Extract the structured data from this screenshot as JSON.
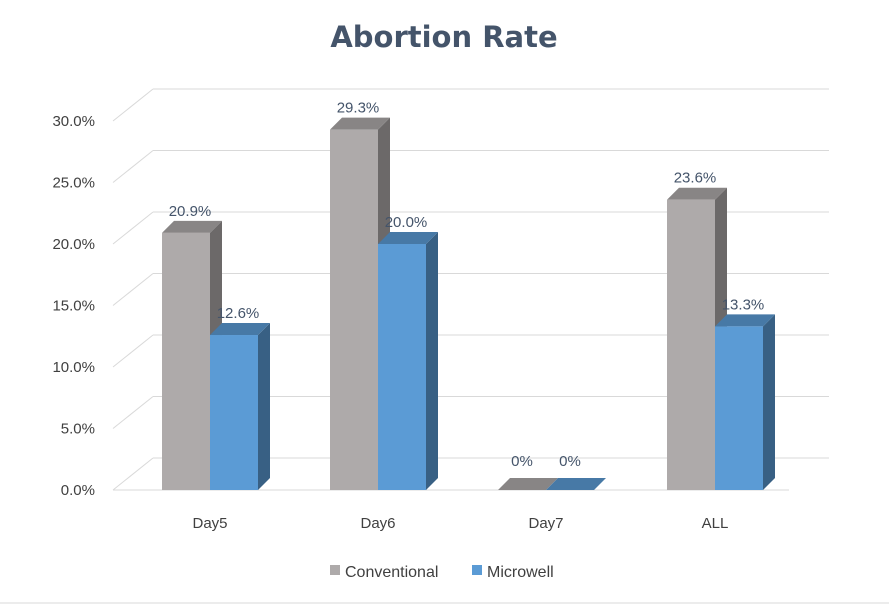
{
  "chart_data": {
    "type": "bar",
    "title": "Abortion Rate",
    "categories": [
      "Day5",
      "Day6",
      "Day7",
      "ALL"
    ],
    "series": [
      {
        "name": "Conventional",
        "values": [
          20.9,
          29.3,
          0,
          23.6
        ],
        "labels": [
          "20.9%",
          "29.3%",
          "0%",
          "23.6%"
        ],
        "color": "#aeaaaa"
      },
      {
        "name": "Microwell",
        "values": [
          12.6,
          20.0,
          0,
          13.3
        ],
        "labels": [
          "12.6%",
          "20.0%",
          "0%",
          "13.3%"
        ],
        "color": "#5b9bd5"
      }
    ],
    "ylim": [
      0,
      30
    ],
    "yticks": [
      0,
      5,
      10,
      15,
      20,
      25,
      30
    ],
    "ytick_labels": [
      "0.0%",
      "5.0%",
      "10.0%",
      "15.0%",
      "20.0%",
      "25.0%",
      "30.0%"
    ],
    "grid": true,
    "legend_position": "bottom",
    "style": "3d-clustered-column"
  }
}
